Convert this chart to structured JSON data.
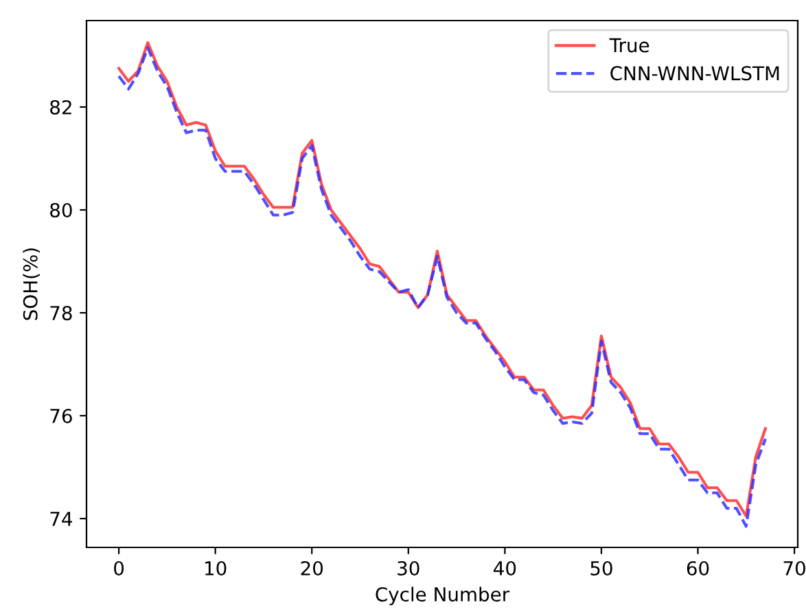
{
  "chart_data": {
    "type": "line",
    "xlabel": "Cycle Number",
    "ylabel": "SOH(%)",
    "x": [
      0,
      1,
      2,
      3,
      4,
      5,
      6,
      7,
      8,
      9,
      10,
      11,
      12,
      13,
      14,
      15,
      16,
      17,
      18,
      19,
      20,
      21,
      22,
      23,
      24,
      25,
      26,
      27,
      28,
      29,
      30,
      31,
      32,
      33,
      34,
      35,
      36,
      37,
      38,
      39,
      40,
      41,
      42,
      43,
      44,
      45,
      46,
      47,
      48,
      49,
      50,
      51,
      52,
      53,
      54,
      55,
      56,
      57,
      58,
      59,
      60,
      61,
      62,
      63,
      64,
      65,
      66,
      67
    ],
    "series": [
      {
        "name": "True",
        "color": "#ff3030",
        "line_style": "solid",
        "values": [
          82.75,
          82.5,
          82.7,
          83.25,
          82.8,
          82.5,
          82.0,
          81.65,
          81.7,
          81.65,
          81.15,
          80.85,
          80.85,
          80.85,
          80.6,
          80.3,
          80.05,
          80.05,
          80.05,
          81.1,
          81.35,
          80.5,
          80.0,
          79.75,
          79.5,
          79.25,
          78.95,
          78.9,
          78.65,
          78.4,
          78.4,
          78.1,
          78.35,
          79.2,
          78.35,
          78.1,
          77.85,
          77.85,
          77.55,
          77.3,
          77.05,
          76.75,
          76.75,
          76.5,
          76.5,
          76.2,
          75.95,
          75.98,
          75.95,
          76.2,
          77.55,
          76.75,
          76.55,
          76.25,
          75.75,
          75.75,
          75.45,
          75.45,
          75.2,
          74.9,
          74.9,
          74.6,
          74.6,
          74.35,
          74.35,
          74.05,
          75.2,
          75.75
        ]
      },
      {
        "name": "CNN-WNN-WLSTM",
        "color": "#3030ff",
        "line_style": "dashed",
        "values": [
          82.6,
          82.35,
          82.65,
          83.15,
          82.7,
          82.4,
          81.9,
          81.5,
          81.55,
          81.55,
          81.0,
          80.75,
          80.75,
          80.75,
          80.5,
          80.2,
          79.9,
          79.9,
          79.95,
          81.0,
          81.25,
          80.4,
          79.9,
          79.65,
          79.4,
          79.1,
          78.85,
          78.8,
          78.6,
          78.4,
          78.45,
          78.1,
          78.35,
          79.1,
          78.3,
          78.0,
          77.8,
          77.8,
          77.5,
          77.25,
          76.95,
          76.7,
          76.7,
          76.45,
          76.4,
          76.1,
          75.85,
          75.88,
          75.85,
          76.05,
          77.45,
          76.65,
          76.45,
          76.15,
          75.65,
          75.65,
          75.35,
          75.35,
          75.05,
          74.75,
          74.75,
          74.5,
          74.5,
          74.2,
          74.2,
          73.85,
          75.05,
          75.55
        ]
      }
    ],
    "xlim": [
      -3.35,
      70.35
    ],
    "ylim": [
      73.44,
      83.68
    ],
    "xticks": [
      0,
      10,
      20,
      30,
      40,
      50,
      60,
      70
    ],
    "yticks": [
      74,
      76,
      78,
      80,
      82
    ],
    "legend": "top right",
    "grid": false,
    "marker": "none"
  }
}
